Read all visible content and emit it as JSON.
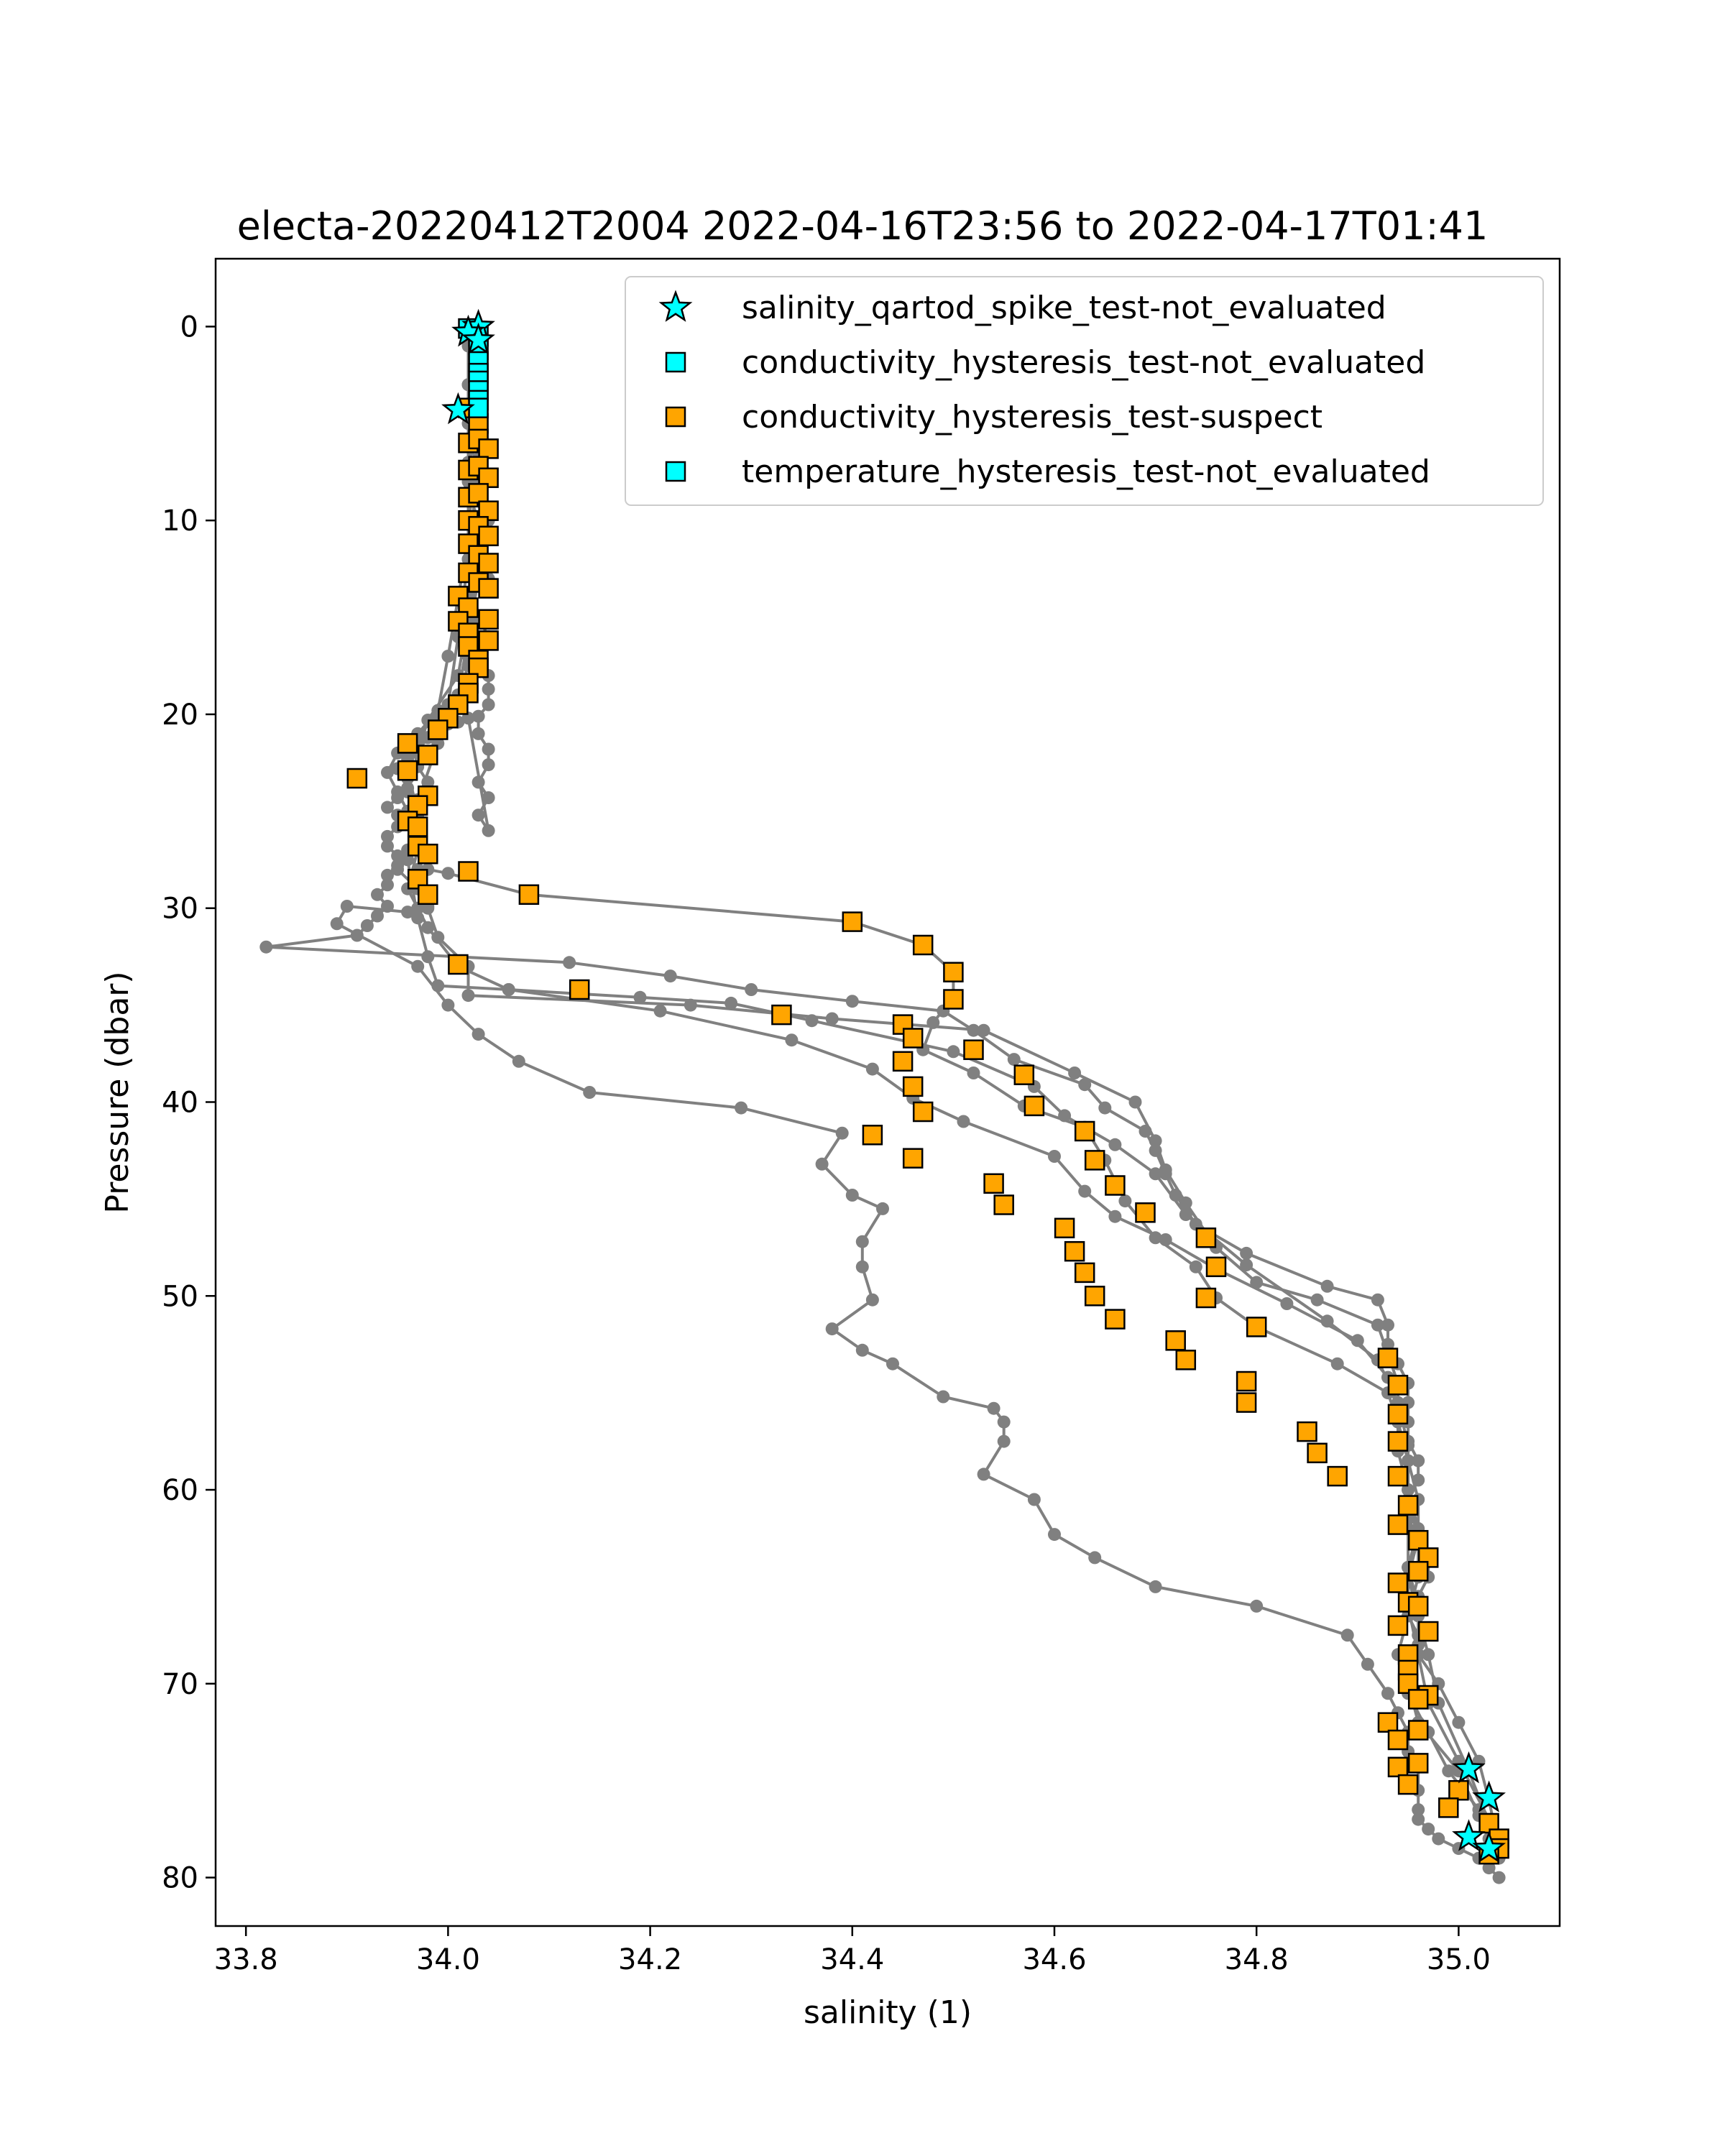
{
  "chart_data": {
    "type": "scatter",
    "title": "electa-20220412T2004 2022-04-16T23:56 to 2022-04-17T01:41",
    "xlabel": "salinity (1)",
    "ylabel": "Pressure (dbar)",
    "xlim": [
      33.77,
      35.1
    ],
    "ylim": [
      82.5,
      -3.5
    ],
    "y_inverted": true,
    "grid": false,
    "legend_position": "top-right",
    "xticks": [
      33.8,
      34.0,
      34.2,
      34.4,
      34.6,
      34.8,
      35.0
    ],
    "xtick_labels": [
      "33.8",
      "34.0",
      "34.2",
      "34.4",
      "34.6",
      "34.8",
      "35.0"
    ],
    "yticks": [
      0,
      10,
      20,
      30,
      40,
      50,
      60,
      70,
      80
    ],
    "ytick_labels": [
      "0",
      "10",
      "20",
      "30",
      "40",
      "50",
      "60",
      "70",
      "80"
    ],
    "colors": {
      "profile_line": "#808080",
      "not_evaluated": "#00ffff",
      "suspect": "#ffa500",
      "marker_edge": "#000000"
    },
    "legend": [
      {
        "label": "salinity_qartod_spike_test-not_evaluated",
        "marker": "star",
        "color": "#00ffff"
      },
      {
        "label": "conductivity_hysteresis_test-not_evaluated",
        "marker": "square",
        "color": "#00ffff"
      },
      {
        "label": "conductivity_hysteresis_test-suspect",
        "marker": "square",
        "color": "#ffa500"
      },
      {
        "label": "temperature_hysteresis_test-not_evaluated",
        "marker": "square",
        "color": "#00ffff"
      }
    ],
    "series": [
      {
        "kind": "profile",
        "x": [
          34.03,
          34.03,
          34.03,
          34.02,
          34.02,
          34.02,
          34.02,
          34.03,
          34.04,
          34.02,
          34.02,
          34.04,
          34.02,
          34.03,
          34.04,
          34.02,
          34.04,
          34.04,
          34.04,
          34.03,
          34.03,
          34.04,
          34.04,
          34.03,
          34.04,
          34.03,
          34.04,
          34.02,
          34.01,
          34.0,
          33.99,
          33.98,
          33.97,
          33.96,
          33.96,
          33.95,
          33.96,
          33.96,
          33.95,
          33.94,
          33.95,
          33.95,
          33.94,
          33.94,
          33.95,
          33.95,
          33.94,
          33.94,
          33.93,
          33.94,
          33.93,
          33.92,
          33.91,
          33.82,
          34.12,
          34.22,
          34.3,
          34.4,
          34.49,
          34.52,
          34.56,
          34.63,
          34.65,
          34.69,
          34.7,
          34.71,
          34.72,
          34.74,
          34.79,
          34.87,
          34.92,
          34.93,
          34.93,
          34.94,
          34.95,
          34.95,
          34.95,
          34.95,
          34.96,
          34.96,
          34.95,
          34.95,
          34.96,
          34.97,
          34.97,
          34.96,
          34.95,
          34.96,
          34.96,
          34.98,
          35.0,
          35.02,
          35.03,
          35.04
        ],
        "y": [
          0,
          1,
          2,
          3,
          4.5,
          6,
          7.5,
          9,
          10,
          11,
          12,
          13,
          14,
          15,
          16,
          17,
          18,
          18.7,
          19.5,
          20.1,
          21,
          21.8,
          22.6,
          23.5,
          24.3,
          25.2,
          26,
          20.2,
          20.4,
          20.5,
          20.8,
          21.2,
          21.5,
          21.8,
          22.3,
          22.8,
          23.3,
          23.8,
          24.3,
          24.8,
          25.2,
          25.8,
          26.3,
          26.8,
          27.3,
          27.8,
          28.3,
          28.8,
          29.3,
          29.9,
          30.4,
          30.9,
          31.4,
          32,
          32.8,
          33.5,
          34.2,
          34.8,
          35.3,
          36.3,
          37.8,
          39.1,
          40.3,
          41.5,
          42.5,
          43.7,
          44.8,
          46.3,
          47.8,
          49.5,
          50.2,
          51.5,
          52.5,
          53.5,
          54.5,
          55.5,
          56.5,
          57.5,
          58.5,
          59.5,
          60.5,
          61.5,
          62.5,
          63.5,
          64.5,
          65.5,
          66.5,
          67.5,
          68.5,
          70,
          72,
          74,
          76,
          78.5
        ]
      },
      {
        "kind": "profile",
        "x": [
          34.03,
          34.03,
          34.02,
          34.03,
          34.02,
          34.02,
          34.03,
          34.02,
          34.03,
          34.02,
          34.03,
          34.02,
          34.01,
          34.0,
          33.99,
          33.98,
          33.97,
          33.97,
          33.98,
          33.97,
          33.97,
          33.97,
          33.98,
          33.97,
          33.97,
          33.98,
          33.98,
          33.97,
          33.96,
          33.9,
          33.89,
          33.97,
          34.0,
          34.03,
          34.07,
          34.14,
          34.29,
          34.39,
          34.37,
          34.4,
          34.43,
          34.41,
          34.41,
          34.42,
          34.38,
          34.41,
          34.44,
          34.49,
          34.54,
          34.55,
          34.55,
          34.53,
          34.58,
          34.6,
          34.64,
          34.7,
          34.8,
          34.89,
          34.91,
          34.93,
          34.94,
          34.95,
          34.95,
          34.96,
          34.96,
          34.96,
          34.96,
          34.97,
          34.98,
          35.0,
          35.02,
          35.03,
          35.04
        ],
        "y": [
          0.5,
          2,
          4,
          5.5,
          7,
          8.5,
          10,
          11.5,
          13,
          14.5,
          16,
          17.5,
          19,
          20,
          20.6,
          21.2,
          21.9,
          22.7,
          23.5,
          24.4,
          25.3,
          26.2,
          27.1,
          28,
          28.8,
          29.5,
          29.9,
          30,
          30.2,
          29.9,
          30.8,
          33,
          35,
          36.5,
          37.9,
          39.5,
          40.3,
          41.6,
          43.2,
          44.8,
          45.5,
          47.2,
          48.5,
          50.2,
          51.7,
          52.8,
          53.5,
          55.2,
          55.8,
          56.5,
          57.5,
          59.2,
          60.5,
          62.3,
          63.5,
          65,
          66,
          67.5,
          69,
          70.5,
          71.5,
          72.5,
          73.5,
          74.3,
          75.5,
          76.5,
          77,
          77.5,
          78,
          78.5,
          79,
          79.5,
          80
        ]
      },
      {
        "kind": "profile",
        "x": [
          34.02,
          34.02,
          34.03,
          34.02,
          34.03,
          34.02,
          34.01,
          33.99,
          33.97,
          33.95,
          33.94,
          33.95,
          33.96,
          33.97,
          33.96,
          33.95,
          33.97,
          33.98,
          33.99,
          34.02,
          34.02,
          34.24,
          34.38,
          34.53,
          34.62,
          34.68,
          34.7,
          34.71,
          34.73,
          34.76,
          34.8,
          34.86,
          34.92,
          34.93,
          34.94,
          34.94,
          34.95,
          34.95,
          34.96,
          34.96,
          34.95,
          34.94,
          34.95,
          34.97,
          34.99,
          35.02,
          35.03
        ],
        "y": [
          1,
          4,
          7,
          10,
          13,
          16,
          19,
          20.2,
          21,
          22,
          23,
          24,
          25,
          26,
          27,
          28,
          29,
          30,
          31.5,
          33,
          34.5,
          35,
          35.7,
          36.3,
          38.5,
          40,
          42,
          43.5,
          45.2,
          47.5,
          49.3,
          50.2,
          51.5,
          53,
          54.5,
          56.5,
          58.5,
          60.5,
          62.5,
          64.5,
          66.5,
          68.5,
          70.5,
          72.5,
          74.5,
          76.5,
          78
        ]
      },
      {
        "kind": "profile",
        "x": [
          34.03,
          34.02,
          34.03,
          34.02,
          34.01,
          34.0,
          33.99,
          33.97,
          33.96,
          33.97,
          33.97,
          33.96,
          33.98,
          34.01,
          34.06,
          34.19,
          34.28,
          34.36,
          34.5,
          34.58,
          34.61,
          34.66,
          34.7,
          34.73,
          34.79,
          34.87,
          34.92,
          34.94,
          34.95,
          34.95,
          34.96,
          34.95,
          34.95,
          34.96,
          34.97,
          35.0,
          35.03
        ],
        "y": [
          2,
          5,
          8,
          11,
          14,
          17,
          19.8,
          21,
          23,
          25,
          27,
          29,
          31,
          33,
          34.2,
          34.6,
          34.9,
          35.8,
          37.4,
          39.2,
          40.7,
          42.2,
          43.7,
          45.8,
          48.4,
          51.3,
          53.3,
          55.5,
          57.7,
          60,
          62,
          64,
          66,
          68.5,
          71,
          74,
          77
        ]
      },
      {
        "kind": "profile",
        "x": [
          34.02,
          34.03,
          34.02,
          34.03,
          34.02,
          34.01,
          33.98,
          33.97,
          33.96,
          33.97,
          33.98,
          34.0,
          34.08,
          34.4,
          34.47,
          34.5,
          34.5,
          34.48,
          34.47,
          34.52,
          34.57,
          34.63,
          34.65,
          34.67,
          34.7,
          34.74,
          34.76,
          34.8,
          34.88,
          34.93,
          34.94,
          34.95,
          34.96,
          34.96,
          34.95,
          34.96,
          34.97,
          34.98,
          35.01,
          35.04
        ],
        "y": [
          3,
          6,
          9,
          12,
          15,
          18,
          20.3,
          22,
          24,
          26,
          28,
          28.2,
          29.3,
          30.7,
          31.9,
          33.3,
          34.6,
          35.9,
          37.3,
          38.5,
          40.2,
          41.3,
          43,
          45.1,
          47,
          48.5,
          50.1,
          51.6,
          53.5,
          55,
          56.5,
          58.5,
          60.5,
          62.5,
          64.5,
          66.5,
          68.5,
          71,
          74.5,
          78.5
        ]
      },
      {
        "kind": "profile",
        "x": [
          34.02,
          34.02,
          34.02,
          34.01,
          34.0,
          33.99,
          33.97,
          33.96,
          33.97,
          33.98,
          33.99,
          34.06,
          34.21,
          34.34,
          34.42,
          34.46,
          34.51,
          34.6,
          34.63,
          34.66,
          34.71,
          34.76,
          34.83,
          34.9,
          34.93,
          34.94,
          34.94,
          34.95,
          34.95,
          34.95,
          34.96,
          34.96,
          34.95,
          34.96,
          35.0,
          35.02,
          35.04
        ],
        "y": [
          4,
          8,
          12,
          16,
          19.5,
          21.5,
          24.5,
          27.5,
          30.5,
          32.5,
          34,
          34.2,
          35.3,
          36.8,
          38.3,
          39.8,
          41,
          42.8,
          44.6,
          45.9,
          47.1,
          48.6,
          50.4,
          52.3,
          54.2,
          56,
          58,
          60,
          62,
          64,
          66,
          68,
          70,
          72,
          74.5,
          76.8,
          79
        ]
      }
    ],
    "flagged_points": [
      {
        "flag": "conductivity_hysteresis_test-suspect",
        "x": [
          34.02,
          34.03,
          34.02,
          34.03,
          34.04,
          34.02,
          34.03,
          34.04,
          34.02,
          34.03,
          34.04,
          34.02,
          34.03,
          34.04,
          34.02,
          34.03,
          34.04,
          34.02,
          34.03,
          34.04,
          34.01,
          34.02,
          34.04,
          34.01,
          34.02,
          34.04,
          34.02,
          34.03,
          34.03,
          34.02,
          34.02,
          34.01,
          34.0,
          33.99,
          33.96,
          33.98,
          33.91,
          33.96,
          33.98,
          33.97,
          33.96,
          33.97,
          33.97,
          33.98,
          34.02,
          33.97,
          34.08,
          33.98,
          34.4,
          34.47,
          34.01,
          34.5,
          34.13,
          34.5,
          34.33,
          34.45,
          34.46,
          34.52,
          34.45,
          34.57,
          34.46,
          34.47,
          34.58,
          34.42,
          34.63,
          34.46,
          34.64,
          34.54,
          34.66,
          34.55,
          34.69,
          34.75,
          34.61,
          34.76,
          34.62,
          34.63,
          34.75,
          34.64,
          34.66,
          34.8,
          34.93,
          34.72,
          34.73,
          34.94,
          34.79,
          34.94,
          34.79,
          34.94,
          34.85,
          34.86,
          34.94,
          34.88,
          34.95,
          34.96,
          34.94,
          34.97,
          34.94,
          34.96,
          34.95,
          34.96,
          34.94,
          34.97,
          34.95,
          34.95,
          34.95,
          34.97,
          34.96,
          34.93,
          34.96,
          34.94,
          34.96,
          34.94,
          34.95,
          35.0,
          34.99,
          35.03,
          35.04,
          35.04,
          35.03
        ],
        "y": [
          4.2,
          5,
          6,
          5.8,
          6.3,
          7.4,
          7.2,
          7.8,
          8.8,
          8.6,
          9.5,
          10,
          10.3,
          10.8,
          11.2,
          11.8,
          12.2,
          12.7,
          13.2,
          13.5,
          13.9,
          14.5,
          15.1,
          15.2,
          15.8,
          16.2,
          16.5,
          17.2,
          17.6,
          18.4,
          18.9,
          19.5,
          20.2,
          20.8,
          21.5,
          22.1,
          23.3,
          22.9,
          24.2,
          24.7,
          25.5,
          25.8,
          26.8,
          27.2,
          28.1,
          28.5,
          29.3,
          29.3,
          30.7,
          31.9,
          32.9,
          33.3,
          34.2,
          34.7,
          35.5,
          36.0,
          36.7,
          37.3,
          37.9,
          38.6,
          39.2,
          40.5,
          40.2,
          41.7,
          41.5,
          42.9,
          43.0,
          44.2,
          44.3,
          45.3,
          45.7,
          47.0,
          46.5,
          48.5,
          47.7,
          48.8,
          50.1,
          50.0,
          51.2,
          51.6,
          53.2,
          52.3,
          53.3,
          54.6,
          54.4,
          56.1,
          55.5,
          57.5,
          57.0,
          58.1,
          59.3,
          59.3,
          60.8,
          62.6,
          61.8,
          63.5,
          64.8,
          64.2,
          65.8,
          66.0,
          67.0,
          67.3,
          68.5,
          69.3,
          70.0,
          70.6,
          70.8,
          72.0,
          72.4,
          72.9,
          74.1,
          74.3,
          75.2,
          75.5,
          76.4,
          77.2,
          78.0,
          78.5,
          78.8
        ]
      },
      {
        "flag": "conductivity_hysteresis_test-not_evaluated",
        "x": [
          34.02,
          34.03,
          34.03,
          34.03,
          34.03,
          34.03,
          34.03,
          34.03,
          34.03
        ],
        "y": [
          0.1,
          0.5,
          1.2,
          1.8,
          2.4,
          2.8,
          3.3,
          3.8,
          4.2
        ]
      },
      {
        "flag": "salinity_qartod_spike_test-not_evaluated",
        "x": [
          34.03,
          34.02,
          34.03,
          34.01,
          35.01,
          35.03,
          35.01,
          35.03
        ],
        "y": [
          0,
          0.3,
          0.7,
          4.3,
          74.4,
          75.9,
          77.9,
          78.5
        ]
      }
    ]
  }
}
